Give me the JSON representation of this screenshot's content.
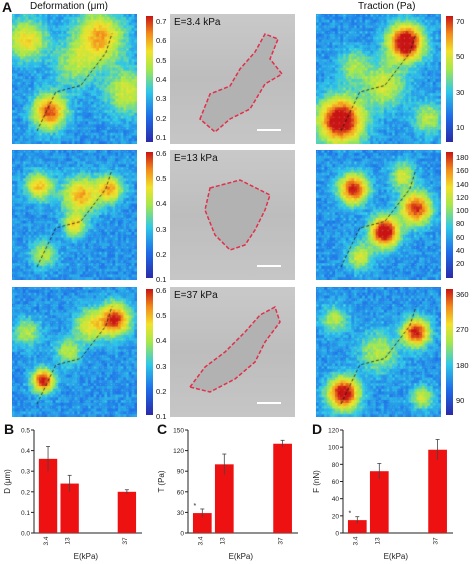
{
  "panel_letters": [
    "A",
    "B",
    "C",
    "D"
  ],
  "column_titles": {
    "deformation": "Deformation (μm)",
    "traction": "Traction (Pa)"
  },
  "rows": [
    {
      "stiffness_label": "E=3.4 kPa",
      "def_ticks": [
        "0.7",
        "0.6",
        "0.5",
        "0.4",
        "0.3",
        "0.2",
        "0.1"
      ],
      "trac_ticks": [
        "70",
        "50",
        "30",
        "10"
      ]
    },
    {
      "stiffness_label": "E=13 kPa",
      "def_ticks": [
        "0.6",
        "0.5",
        "0.4",
        "0.3",
        "0.2",
        "0.1"
      ],
      "trac_ticks": [
        "180",
        "160",
        "140",
        "120",
        "100",
        "80",
        "60",
        "40",
        "20"
      ]
    },
    {
      "stiffness_label": "E=37 kPa",
      "def_ticks": [
        "0.6",
        "0.5",
        "0.4",
        "0.3",
        "0.2",
        "0.1"
      ],
      "trac_ticks": [
        "360",
        "270",
        "180",
        "90"
      ]
    }
  ],
  "colormap": [
    "#2a2aa8",
    "#1e6be8",
    "#2ec8e8",
    "#a6e84a",
    "#f2e22a",
    "#f28a1a",
    "#c81414"
  ],
  "outline_color": "#e0304a",
  "bar_color": "#ee1111",
  "chart_data": [
    {
      "type": "bar",
      "panel": "B",
      "categories": [
        "3.4",
        "13",
        "37"
      ],
      "x": [
        3.4,
        13,
        37
      ],
      "values": [
        0.36,
        0.24,
        0.2
      ],
      "errors": [
        0.06,
        0.04,
        0.01
      ],
      "significance": [],
      "xlabel": "E(kPa)",
      "ylabel": "D (μm)",
      "ylim": [
        0,
        0.5
      ],
      "yticks": [
        "0.0",
        "0.1",
        "0.2",
        "0.3",
        "0.4",
        "0.5"
      ]
    },
    {
      "type": "bar",
      "panel": "C",
      "categories": [
        "3.4",
        "13",
        "37"
      ],
      "x": [
        3.4,
        13,
        37
      ],
      "values": [
        29,
        100,
        130
      ],
      "errors": [
        6,
        15,
        5
      ],
      "significance": [
        "*",
        "",
        ""
      ],
      "xlabel": "E(kPa)",
      "ylabel": "T (Pa)",
      "ylim": [
        0,
        150
      ],
      "yticks": [
        "0",
        "30",
        "60",
        "90",
        "120",
        "150"
      ]
    },
    {
      "type": "bar",
      "panel": "D",
      "categories": [
        "3.4",
        "13",
        "37"
      ],
      "x": [
        3.4,
        13,
        37
      ],
      "values": [
        15,
        72,
        97
      ],
      "errors": [
        4,
        9,
        12
      ],
      "significance": [
        "*",
        "",
        ""
      ],
      "xlabel": "E(kPa)",
      "ylabel": "F (nN)",
      "ylim": [
        0,
        120
      ],
      "yticks": [
        "0",
        "20",
        "40",
        "60",
        "80",
        "100",
        "120"
      ]
    }
  ]
}
